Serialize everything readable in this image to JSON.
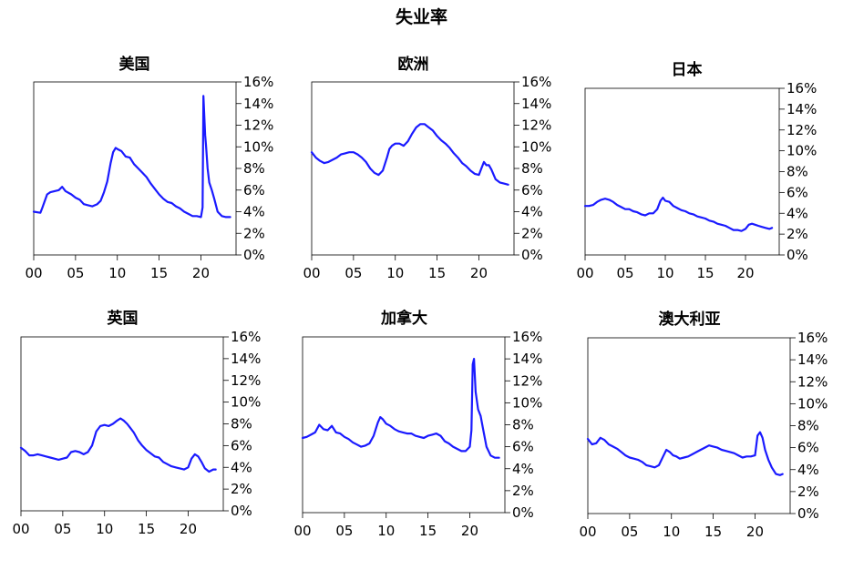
{
  "title": "失业率",
  "chart_data": [
    {
      "type": "line",
      "title": "美国",
      "x_ticks": [
        "00",
        "05",
        "10",
        "15",
        "20"
      ],
      "y_ticks": [
        "0%",
        "2%",
        "4%",
        "6%",
        "8%",
        "10%",
        "12%",
        "14%",
        "16%"
      ],
      "xlim": [
        2000,
        2024.2
      ],
      "ylim": [
        0,
        16
      ],
      "line_color": "#1a1aff",
      "series": [
        {
          "x": [
            2000,
            2000.8,
            2001,
            2001.6,
            2002,
            2002.5,
            2003,
            2003.4,
            2003.8,
            2004.5,
            2005,
            2005.5,
            2006,
            2006.5,
            2007,
            2007.6,
            2008,
            2008.4,
            2008.8,
            2009.2,
            2009.5,
            2009.8,
            2010,
            2010.5,
            2011,
            2011.5,
            2012,
            2012.5,
            2013,
            2013.5,
            2014,
            2014.5,
            2015,
            2015.5,
            2016,
            2016.5,
            2017,
            2017.5,
            2018,
            2018.5,
            2019,
            2019.5,
            2020,
            2020.2,
            2020.3,
            2020.4,
            2020.5,
            2020.6,
            2020.8,
            2021,
            2021.3,
            2021.6,
            2022,
            2022.5,
            2023,
            2023.5
          ],
          "y": [
            4.0,
            3.9,
            4.3,
            5.6,
            5.8,
            5.9,
            6.0,
            6.3,
            5.9,
            5.6,
            5.3,
            5.1,
            4.7,
            4.6,
            4.5,
            4.7,
            5.0,
            5.8,
            6.8,
            8.5,
            9.5,
            9.9,
            9.8,
            9.6,
            9.1,
            9.0,
            8.4,
            8.0,
            7.6,
            7.2,
            6.6,
            6.1,
            5.6,
            5.2,
            4.9,
            4.8,
            4.5,
            4.3,
            4.0,
            3.8,
            3.6,
            3.6,
            3.5,
            4.4,
            14.7,
            13.0,
            11.1,
            10.2,
            8.0,
            6.7,
            6.0,
            5.2,
            4.0,
            3.6,
            3.5,
            3.5
          ]
        }
      ]
    },
    {
      "type": "line",
      "title": "欧洲",
      "x_ticks": [
        "00",
        "05",
        "10",
        "15",
        "20"
      ],
      "y_ticks": [
        "0%",
        "2%",
        "4%",
        "6%",
        "8%",
        "10%",
        "12%",
        "14%",
        "16%"
      ],
      "xlim": [
        2000,
        2024.2
      ],
      "ylim": [
        0,
        16
      ],
      "line_color": "#1a1aff",
      "series": [
        {
          "x": [
            2000,
            2000.5,
            2001,
            2001.5,
            2002,
            2002.5,
            2003,
            2003.5,
            2004,
            2004.5,
            2005,
            2005.5,
            2006,
            2006.5,
            2007,
            2007.5,
            2008,
            2008.5,
            2009,
            2009.3,
            2009.6,
            2010,
            2010.5,
            2011,
            2011.5,
            2012,
            2012.5,
            2013,
            2013.5,
            2014,
            2014.5,
            2015,
            2015.5,
            2016,
            2016.5,
            2017,
            2017.5,
            2018,
            2018.5,
            2019,
            2019.5,
            2020,
            2020.3,
            2020.6,
            2020.9,
            2021.2,
            2021.5,
            2022,
            2022.5,
            2023,
            2023.5
          ],
          "y": [
            9.5,
            9.0,
            8.7,
            8.5,
            8.6,
            8.8,
            9.0,
            9.3,
            9.4,
            9.5,
            9.5,
            9.3,
            9.0,
            8.6,
            8.0,
            7.6,
            7.4,
            7.8,
            9.0,
            9.8,
            10.1,
            10.3,
            10.3,
            10.1,
            10.5,
            11.2,
            11.8,
            12.1,
            12.1,
            11.8,
            11.5,
            11.0,
            10.6,
            10.3,
            9.9,
            9.4,
            9.0,
            8.5,
            8.2,
            7.8,
            7.5,
            7.4,
            8.0,
            8.6,
            8.3,
            8.3,
            7.9,
            7.0,
            6.7,
            6.6,
            6.5
          ]
        }
      ]
    },
    {
      "type": "line",
      "title": "日本",
      "x_ticks": [
        "00",
        "05",
        "10",
        "15",
        "20"
      ],
      "y_ticks": [
        "0%",
        "2%",
        "4%",
        "6%",
        "8%",
        "10%",
        "12%",
        "14%",
        "16%"
      ],
      "xlim": [
        2000,
        2024.2
      ],
      "ylim": [
        0,
        16
      ],
      "line_color": "#1a1aff",
      "series": [
        {
          "x": [
            2000,
            2000.5,
            2001,
            2001.5,
            2002,
            2002.5,
            2003,
            2003.5,
            2004,
            2004.5,
            2005,
            2005.5,
            2006,
            2006.5,
            2007,
            2007.5,
            2008,
            2008.5,
            2009,
            2009.4,
            2009.7,
            2010,
            2010.5,
            2011,
            2011.5,
            2012,
            2012.5,
            2013,
            2013.5,
            2014,
            2014.5,
            2015,
            2015.5,
            2016,
            2016.5,
            2017,
            2017.5,
            2018,
            2018.5,
            2019,
            2019.5,
            2020,
            2020.4,
            2020.8,
            2021.2,
            2021.6,
            2022,
            2022.5,
            2023,
            2023.3
          ],
          "y": [
            4.7,
            4.7,
            4.8,
            5.1,
            5.3,
            5.4,
            5.3,
            5.1,
            4.8,
            4.6,
            4.4,
            4.4,
            4.2,
            4.1,
            3.9,
            3.8,
            4.0,
            4.0,
            4.4,
            5.2,
            5.5,
            5.2,
            5.1,
            4.7,
            4.5,
            4.3,
            4.2,
            4.0,
            3.9,
            3.7,
            3.6,
            3.5,
            3.3,
            3.2,
            3.0,
            2.9,
            2.8,
            2.6,
            2.4,
            2.4,
            2.3,
            2.5,
            2.9,
            3.0,
            2.9,
            2.8,
            2.7,
            2.6,
            2.5,
            2.6
          ]
        }
      ]
    },
    {
      "type": "line",
      "title": "英国",
      "x_ticks": [
        "00",
        "05",
        "10",
        "15",
        "20"
      ],
      "y_ticks": [
        "0%",
        "2%",
        "4%",
        "6%",
        "8%",
        "10%",
        "12%",
        "14%",
        "16%"
      ],
      "xlim": [
        2000,
        2024.2
      ],
      "ylim": [
        0,
        16
      ],
      "line_color": "#1a1aff",
      "series": [
        {
          "x": [
            2000,
            2000.5,
            2001,
            2001.5,
            2002,
            2002.5,
            2003,
            2003.5,
            2004,
            2004.5,
            2005,
            2005.5,
            2006,
            2006.5,
            2007,
            2007.5,
            2008,
            2008.5,
            2009,
            2009.5,
            2010,
            2010.5,
            2011,
            2011.5,
            2011.9,
            2012.3,
            2012.7,
            2013,
            2013.5,
            2014,
            2014.5,
            2015,
            2015.5,
            2016,
            2016.5,
            2017,
            2017.5,
            2018,
            2018.5,
            2019,
            2019.5,
            2020,
            2020.4,
            2020.8,
            2021.2,
            2021.6,
            2022,
            2022.5,
            2023,
            2023.3
          ],
          "y": [
            5.8,
            5.5,
            5.1,
            5.1,
            5.2,
            5.1,
            5.0,
            4.9,
            4.8,
            4.7,
            4.8,
            4.9,
            5.4,
            5.5,
            5.4,
            5.2,
            5.4,
            6.0,
            7.3,
            7.8,
            7.9,
            7.8,
            8.0,
            8.3,
            8.5,
            8.3,
            8.0,
            7.7,
            7.2,
            6.5,
            6.0,
            5.6,
            5.3,
            5.0,
            4.9,
            4.5,
            4.3,
            4.1,
            4.0,
            3.9,
            3.8,
            4.0,
            4.8,
            5.2,
            5.0,
            4.5,
            3.9,
            3.6,
            3.8,
            3.8
          ]
        }
      ]
    },
    {
      "type": "line",
      "title": "加拿大",
      "x_ticks": [
        "00",
        "05",
        "10",
        "15",
        "20"
      ],
      "y_ticks": [
        "0%",
        "2%",
        "4%",
        "6%",
        "8%",
        "10%",
        "12%",
        "14%",
        "16%"
      ],
      "xlim": [
        2000,
        2024.2
      ],
      "ylim": [
        0,
        16
      ],
      "line_color": "#1a1aff",
      "series": [
        {
          "x": [
            2000,
            2000.5,
            2001,
            2001.5,
            2002,
            2002.5,
            2003,
            2003.5,
            2004,
            2004.5,
            2005,
            2005.5,
            2006,
            2006.5,
            2007,
            2007.5,
            2008,
            2008.5,
            2009,
            2009.3,
            2009.6,
            2010,
            2010.5,
            2011,
            2011.5,
            2012,
            2012.5,
            2013,
            2013.5,
            2014,
            2014.5,
            2015,
            2015.5,
            2016,
            2016.5,
            2017,
            2017.5,
            2018,
            2018.5,
            2019,
            2019.5,
            2020,
            2020.2,
            2020.35,
            2020.5,
            2020.7,
            2021,
            2021.3,
            2021.6,
            2022,
            2022.5,
            2023,
            2023.5
          ],
          "y": [
            6.8,
            6.9,
            7.1,
            7.3,
            8.0,
            7.6,
            7.5,
            7.9,
            7.3,
            7.2,
            6.9,
            6.7,
            6.4,
            6.2,
            6.0,
            6.1,
            6.3,
            7.0,
            8.2,
            8.7,
            8.5,
            8.1,
            7.9,
            7.6,
            7.4,
            7.3,
            7.2,
            7.2,
            7.0,
            6.9,
            6.8,
            7.0,
            7.1,
            7.2,
            7.0,
            6.5,
            6.3,
            6.0,
            5.8,
            5.6,
            5.6,
            6.0,
            7.5,
            13.5,
            14.0,
            11.0,
            9.4,
            8.8,
            7.6,
            6.0,
            5.2,
            5.0,
            5.0
          ]
        }
      ]
    },
    {
      "type": "line",
      "title": "澳大利亚",
      "x_ticks": [
        "00",
        "05",
        "10",
        "15",
        "20"
      ],
      "y_ticks": [
        "0%",
        "2%",
        "4%",
        "6%",
        "8%",
        "10%",
        "12%",
        "14%",
        "16%"
      ],
      "xlim": [
        2000,
        2024.2
      ],
      "ylim": [
        0,
        16
      ],
      "line_color": "#1a1aff",
      "series": [
        {
          "x": [
            2000,
            2000.5,
            2001,
            2001.5,
            2002,
            2002.5,
            2003,
            2003.5,
            2004,
            2004.5,
            2005,
            2005.5,
            2006,
            2006.5,
            2007,
            2007.5,
            2008,
            2008.5,
            2009,
            2009.4,
            2009.8,
            2010.2,
            2010.6,
            2011,
            2011.5,
            2012,
            2012.5,
            2013,
            2013.5,
            2014,
            2014.5,
            2015,
            2015.5,
            2016,
            2016.5,
            2017,
            2017.5,
            2018,
            2018.5,
            2019,
            2019.5,
            2020,
            2020.3,
            2020.6,
            2020.9,
            2021.2,
            2021.6,
            2022,
            2022.5,
            2023,
            2023.3
          ],
          "y": [
            6.8,
            6.3,
            6.4,
            6.9,
            6.7,
            6.3,
            6.1,
            5.9,
            5.6,
            5.3,
            5.1,
            5.0,
            4.9,
            4.7,
            4.4,
            4.3,
            4.2,
            4.4,
            5.2,
            5.8,
            5.6,
            5.3,
            5.2,
            5.0,
            5.1,
            5.2,
            5.4,
            5.6,
            5.8,
            6.0,
            6.2,
            6.1,
            6.0,
            5.8,
            5.7,
            5.6,
            5.5,
            5.3,
            5.1,
            5.2,
            5.2,
            5.3,
            7.1,
            7.4,
            6.9,
            5.8,
            4.9,
            4.2,
            3.6,
            3.5,
            3.6
          ]
        }
      ]
    }
  ]
}
